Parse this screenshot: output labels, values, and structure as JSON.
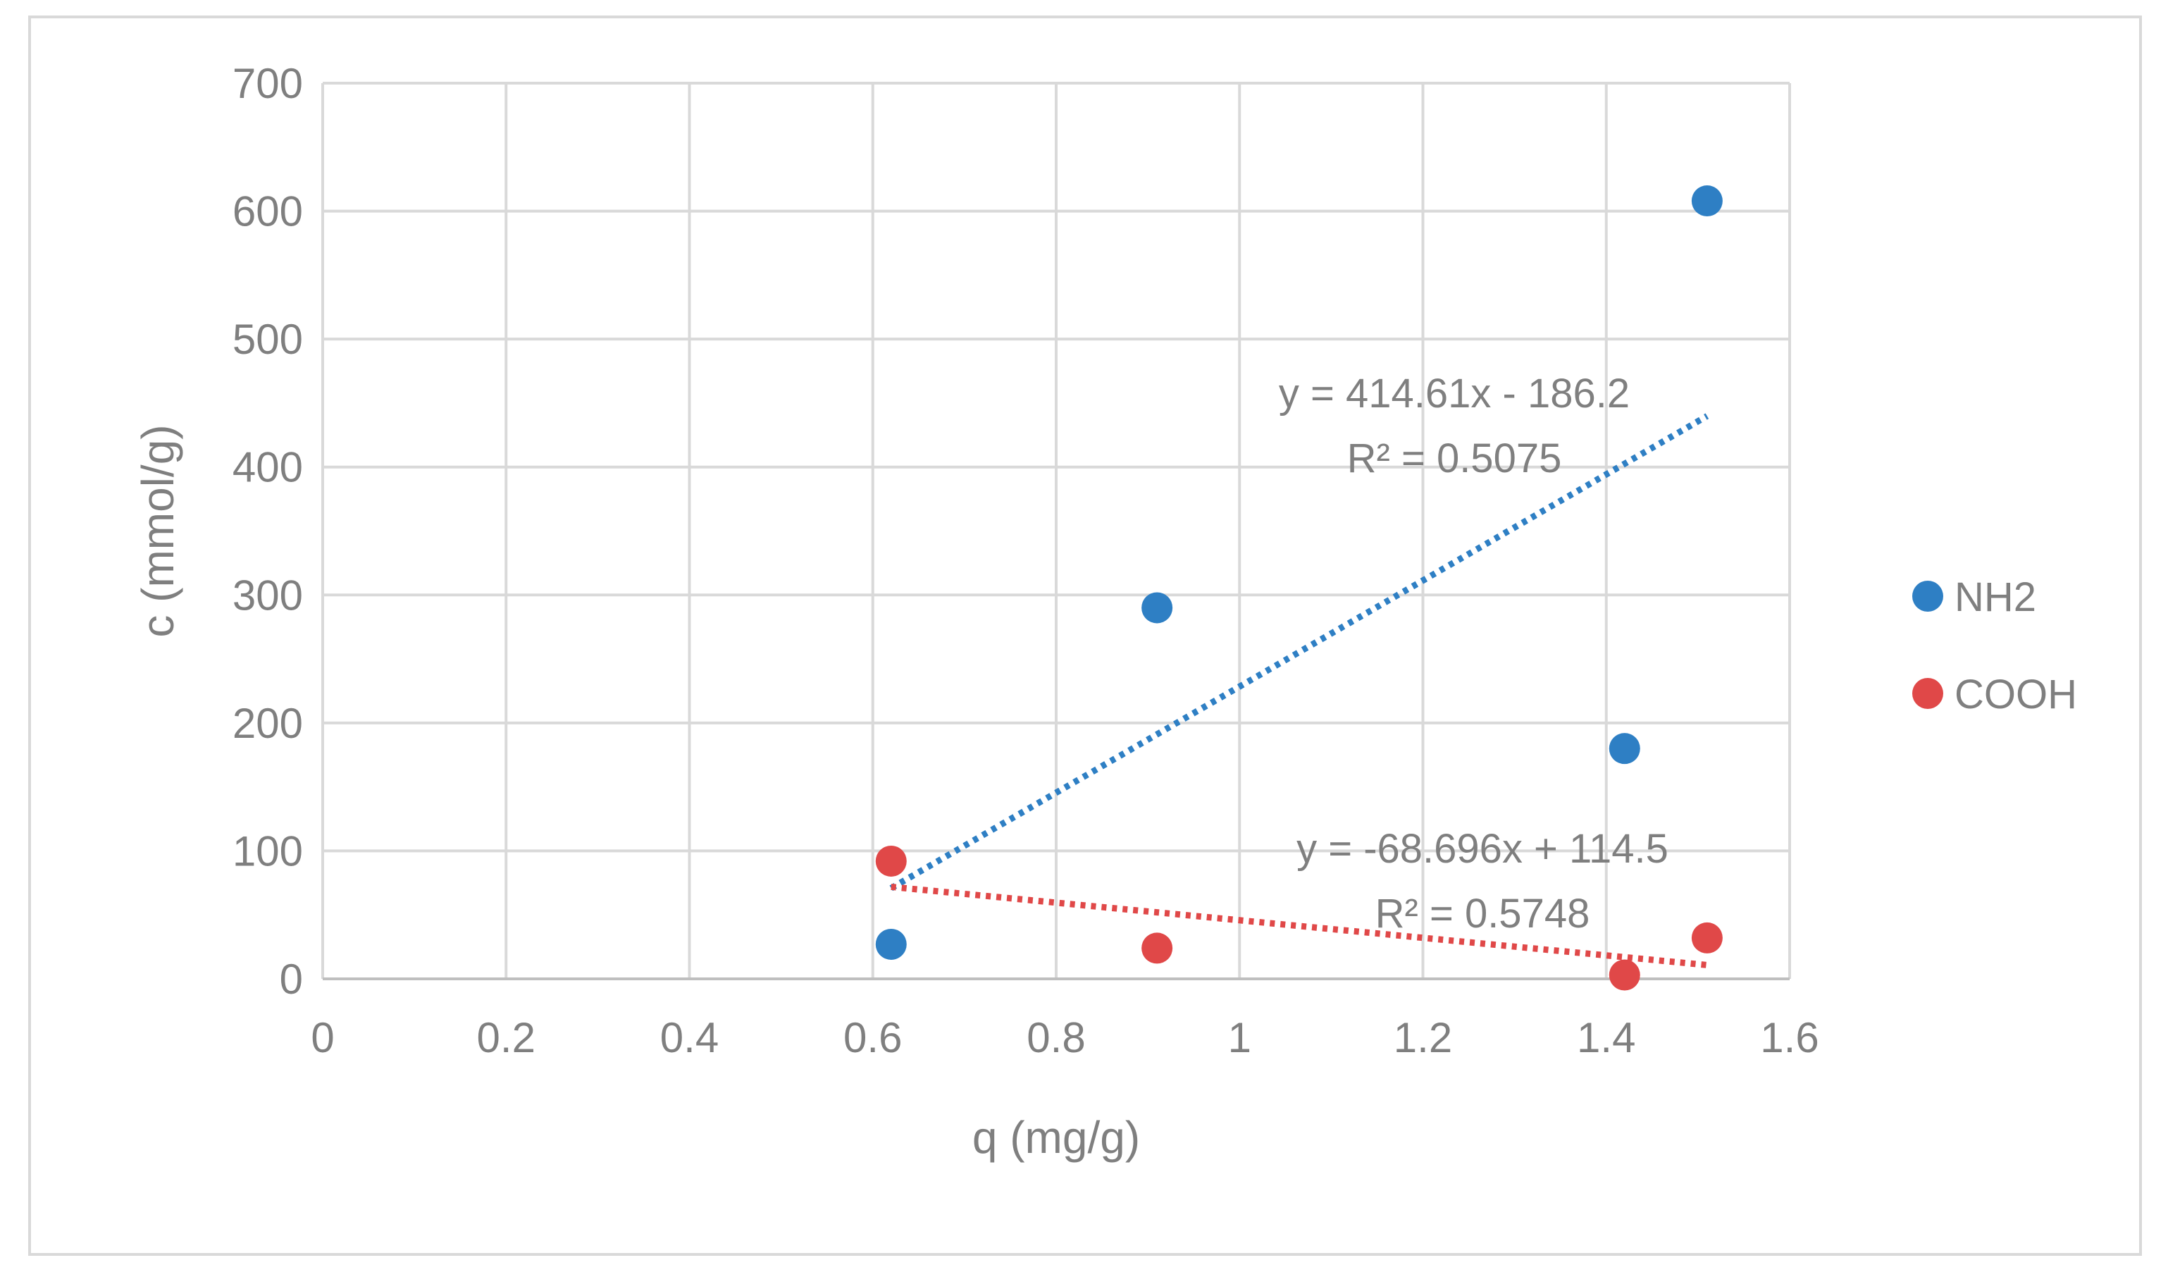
{
  "chart_data": {
    "type": "scatter",
    "title": "",
    "xlabel": "q (mg/g)",
    "ylabel": "c (mmol/g)",
    "xlim": [
      0,
      1.6
    ],
    "ylim": [
      0,
      700
    ],
    "xticks": [
      0,
      0.2,
      0.4,
      0.6,
      0.8,
      1,
      1.2,
      1.4,
      1.6
    ],
    "yticks": [
      0,
      100,
      200,
      300,
      400,
      500,
      600,
      700
    ],
    "xtick_labels": [
      "0",
      "0.2",
      "0.4",
      "0.6",
      "0.8",
      "1",
      "1.2",
      "1.4",
      "1.6"
    ],
    "ytick_labels": [
      "0",
      "100",
      "200",
      "300",
      "400",
      "500",
      "600",
      "700"
    ],
    "grid": true,
    "legend_position": "right",
    "series": [
      {
        "name": "NH2",
        "color": "#2e7fc4",
        "x": [
          0.62,
          0.91,
          1.42,
          1.51
        ],
        "y": [
          27,
          290,
          180,
          608
        ],
        "trendline": {
          "type": "linear",
          "slope": 414.61,
          "intercept": -186.2,
          "x_range": [
            0.62,
            1.51
          ],
          "equation": "y = 414.61x - 186.2",
          "r_squared": "R² = 0.5075"
        }
      },
      {
        "name": "COOH",
        "color": "#e04848",
        "x": [
          0.62,
          0.91,
          1.42,
          1.51
        ],
        "y": [
          92,
          24,
          3,
          32
        ],
        "trendline": {
          "type": "linear",
          "slope": -68.696,
          "intercept": 114.5,
          "x_range": [
            0.62,
            1.51
          ],
          "equation": "y = -68.696x + 114.5",
          "r_squared": "R² = 0.5748"
        }
      }
    ]
  }
}
